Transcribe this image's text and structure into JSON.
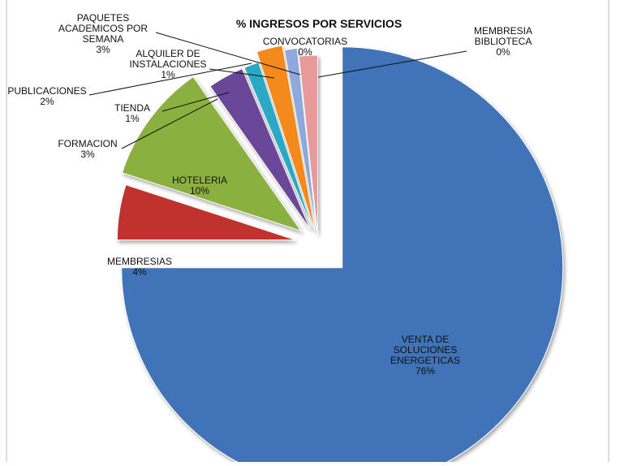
{
  "chart_data": {
    "type": "pie",
    "title": "% INGRESOS POR SERVICIOS",
    "slices": [
      {
        "name": "VENTA DE SOLUCIONES ENERGETICAS",
        "value_label": "76%",
        "value": 76,
        "color": "#3F73B8"
      },
      {
        "name": "MEMBRESIAS",
        "value_label": "4%",
        "value": 4,
        "color": "#C0312F"
      },
      {
        "name": "HOTELERIA",
        "value_label": "10%",
        "value": 10,
        "color": "#8AB140"
      },
      {
        "name": "FORMACION",
        "value_label": "3%",
        "value": 3,
        "color": "#6B4699"
      },
      {
        "name": "TIENDA",
        "value_label": "1%",
        "value": 1,
        "color": "#2AA8C6"
      },
      {
        "name": "PUBLICACIONES",
        "value_label": "2%",
        "value": 2,
        "color": "#F48A1E"
      },
      {
        "name": "ALQUILER DE INSTALACIONES",
        "value_label": "1%",
        "value": 1,
        "color": "#8EA9DB"
      },
      {
        "name": "PAQUETES ACADEMICOS POR SEMANA",
        "value_label": "3%",
        "value": 3,
        "color": "#E79A99"
      },
      {
        "name": "CONVOCATORIAS",
        "value_label": "0%",
        "value": 0,
        "color": "#B9D27C"
      },
      {
        "name": "MEMBRESIA BIBLIOTECA",
        "value_label": "0%",
        "value": 0,
        "color": "#9C83BE"
      }
    ]
  }
}
